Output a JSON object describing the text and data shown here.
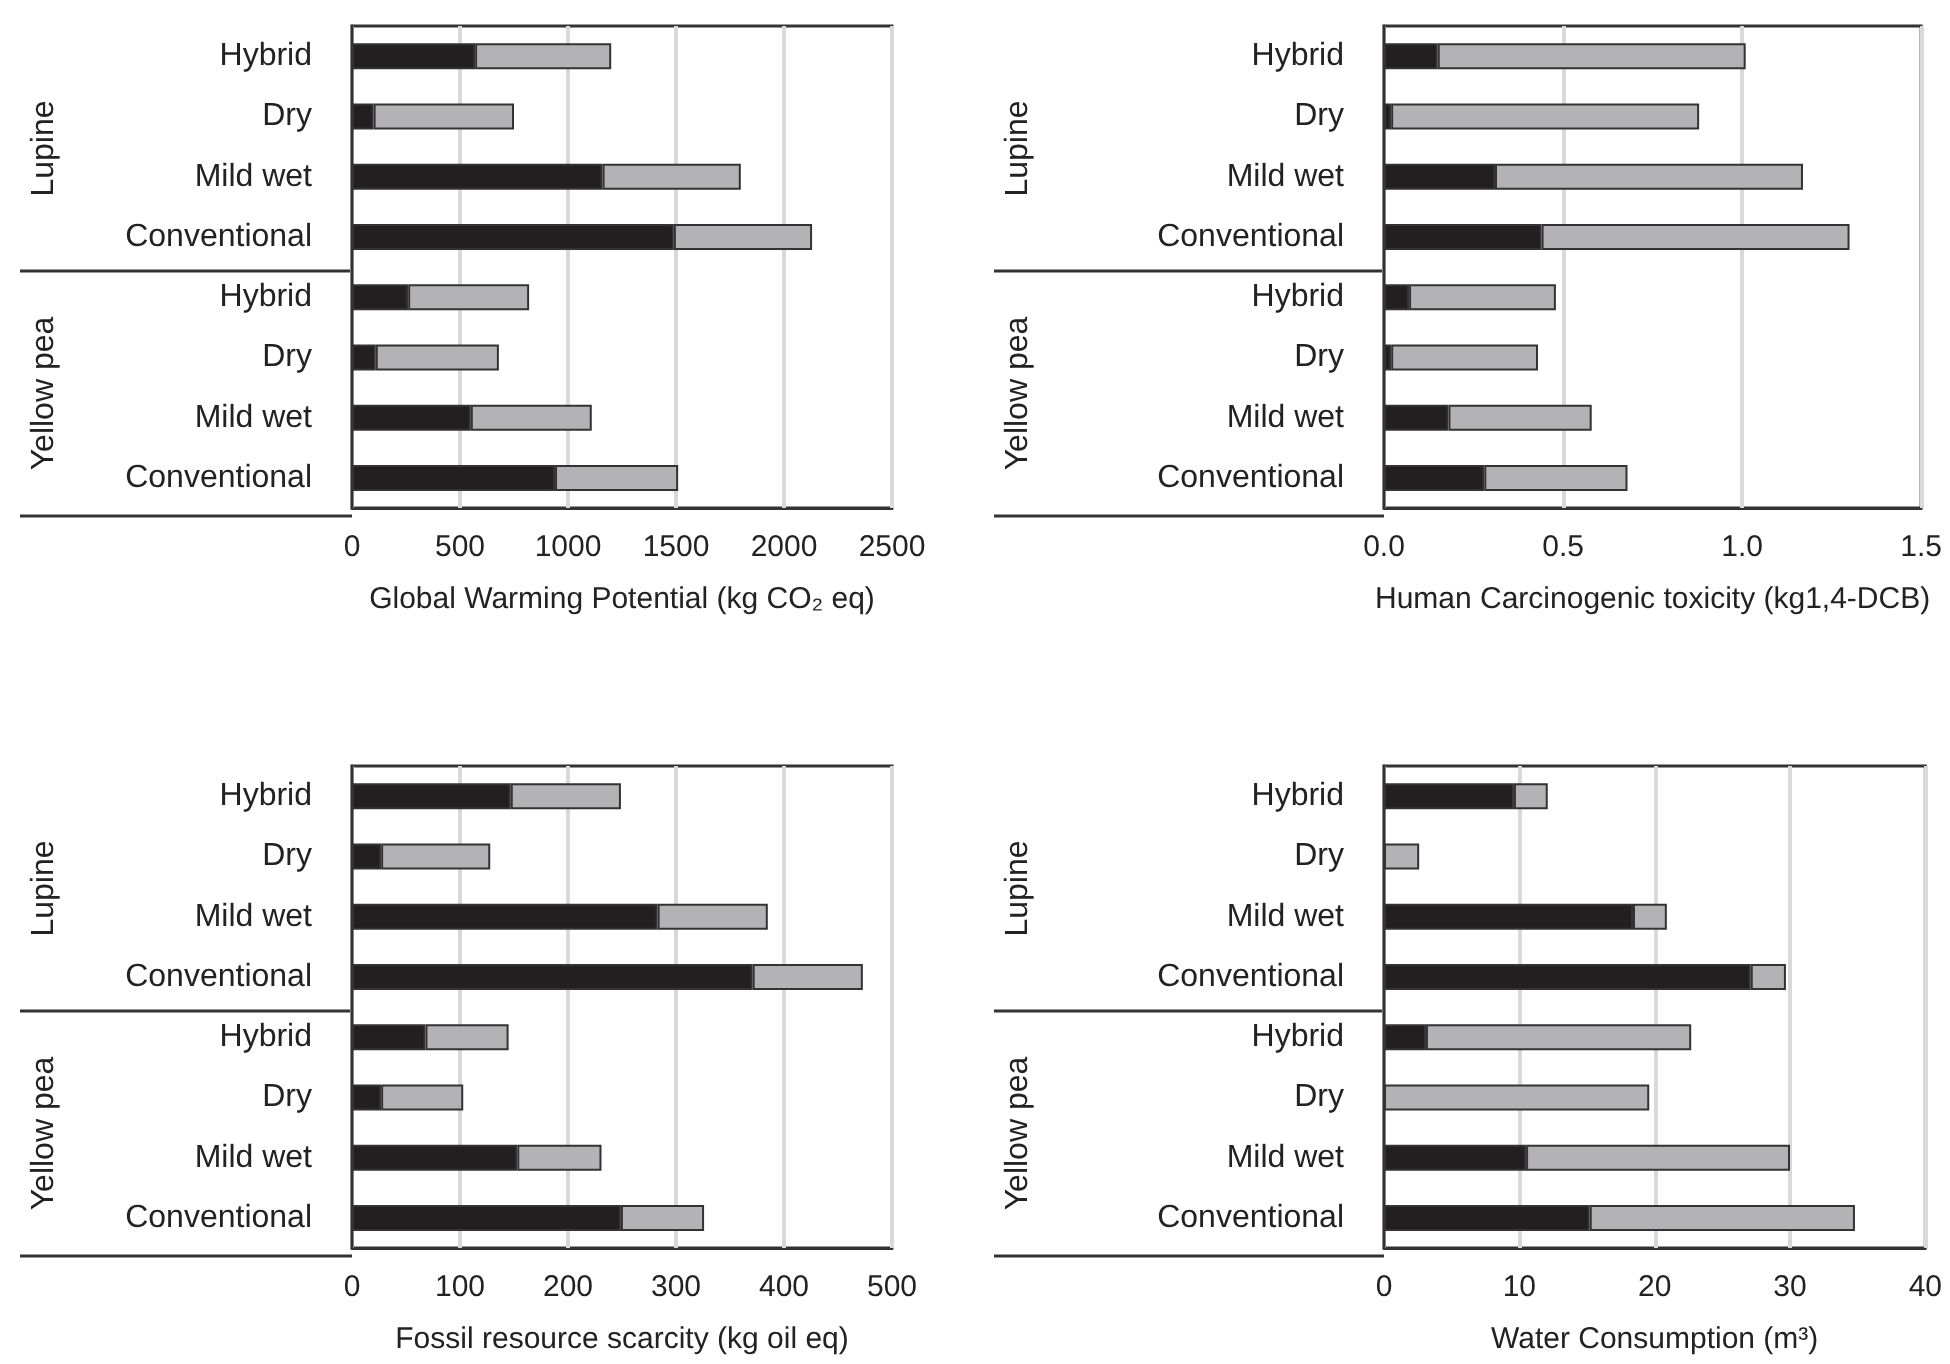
{
  "chart_data": [
    {
      "type": "bar",
      "orientation": "horizontal",
      "stacked": true,
      "xlabel": "Global Warming Potential (kg CO₂ eq)",
      "categories": [
        "Hybrid",
        "Dry",
        "Mild wet",
        "Conventional",
        "Hybrid",
        "Dry",
        "Mild wet",
        "Conventional"
      ],
      "annotations": [
        "Lupine",
        "Yellow pea"
      ],
      "xlim": [
        0,
        2500
      ],
      "xticks": [
        0,
        500,
        1000,
        1500,
        2000,
        2500
      ],
      "grid": "x",
      "series": [
        {
          "color": "#231f20",
          "values": [
            570,
            100,
            1160,
            1490,
            260,
            110,
            550,
            940
          ]
        },
        {
          "color": "#b3b3b5",
          "values": [
            630,
            650,
            640,
            640,
            560,
            570,
            560,
            570
          ]
        }
      ]
    },
    {
      "type": "bar",
      "orientation": "horizontal",
      "stacked": true,
      "xlabel": "Human Carcinogenic toxicity (kg1,4-DCB)",
      "categories": [
        "Hybrid",
        "Dry",
        "Mild wet",
        "Conventional",
        "Hybrid",
        "Dry",
        "Mild wet",
        "Conventional"
      ],
      "annotations": [
        "Lupine",
        "Yellow pea"
      ],
      "xlim": [
        0,
        1.5
      ],
      "xticks": [
        {
          "value": 0,
          "label": "0.0"
        },
        {
          "value": 0.5,
          "label": "0.5"
        },
        {
          "value": 1,
          "label": "1.0"
        },
        {
          "value": 1.5,
          "label": "1.5"
        }
      ],
      "grid": "x",
      "series": [
        {
          "color": "#231f20",
          "values": [
            0.15,
            0.02,
            0.31,
            0.44,
            0.07,
            0.02,
            0.18,
            0.28
          ]
        },
        {
          "color": "#b3b3b5",
          "values": [
            0.86,
            0.86,
            0.86,
            0.86,
            0.41,
            0.41,
            0.4,
            0.4
          ]
        }
      ]
    },
    {
      "type": "bar",
      "orientation": "horizontal",
      "stacked": true,
      "xlabel": "Fossil resource scarcity (kg oil eq)",
      "categories": [
        "Hybrid",
        "Dry",
        "Mild wet",
        "Conventional",
        "Hybrid",
        "Dry",
        "Mild wet",
        "Conventional"
      ],
      "annotations": [
        "Lupine",
        "Yellow pea"
      ],
      "xlim": [
        0,
        500
      ],
      "xticks": [
        0,
        100,
        200,
        300,
        400,
        500
      ],
      "grid": "x",
      "series": [
        {
          "color": "#231f20",
          "values": [
            147,
            27,
            283,
            371,
            68,
            27,
            153,
            249
          ]
        },
        {
          "color": "#b3b3b5",
          "values": [
            102,
            101,
            102,
            102,
            77,
            76,
            78,
            77
          ]
        }
      ]
    },
    {
      "type": "bar",
      "orientation": "horizontal",
      "stacked": true,
      "xlabel": "Water Consumption (m³)",
      "categories": [
        "Hybrid",
        "Dry",
        "Mild wet",
        "Conventional",
        "Hybrid",
        "Dry",
        "Mild wet",
        "Conventional"
      ],
      "annotations": [
        "Lupine",
        "Yellow pea"
      ],
      "xlim": [
        0,
        40
      ],
      "xticks": [
        0,
        10,
        20,
        30,
        40
      ],
      "grid": "x",
      "series": [
        {
          "color": "#231f20",
          "values": [
            9.6,
            null,
            18.4,
            27.1,
            3.1,
            null,
            10.5,
            15.2
          ]
        },
        {
          "color": "#b3b3b5",
          "values": [
            2.5,
            2.6,
            2.5,
            2.6,
            19.6,
            19.6,
            19.5,
            19.6
          ]
        }
      ]
    }
  ]
}
